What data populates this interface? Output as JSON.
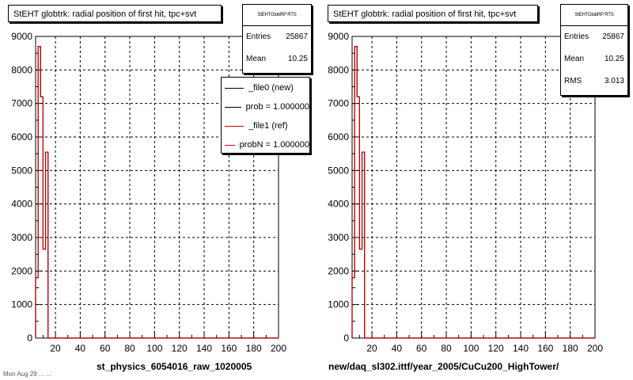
{
  "colors": {
    "new": "#000000",
    "ref": "#cc0000",
    "grid": "#000000"
  },
  "panels": [
    {
      "title": "StEHT globtrk: radial position of first hit, tpc+svt",
      "stats": {
        "header": "StEHTGlobRP RTS",
        "rows": [
          {
            "label": "Entries",
            "value": "25867"
          },
          {
            "label": "Mean",
            "value": "10.25"
          }
        ]
      },
      "legend": [
        {
          "label": "_file0 (new)",
          "color": "#000000"
        },
        {
          "label": "prob = 1.000000",
          "color": "#000000"
        },
        {
          "label": "_file1 (ref)",
          "color": "#cc0000"
        },
        {
          "label": "probN = 1.000000",
          "color": "#cc0000"
        }
      ],
      "xtitle": "st_physics_6054016_raw_1020005"
    },
    {
      "title": "StEHT globtrk: radial position of first hit, tpc+svt",
      "stats": {
        "header": "StEHTGlobRP RTS",
        "rows": [
          {
            "label": "Entries",
            "value": "25867"
          },
          {
            "label": "Mean",
            "value": "10.25"
          },
          {
            "label": "RMS",
            "value": "3.013"
          }
        ]
      },
      "xtitle": "new/daq_sl302.ittf/year_2005/CuCu200_HighTower/"
    }
  ],
  "footer": "Mon Aug 29 ... ...",
  "chart_data": [
    {
      "type": "bar",
      "title": "StEHT globtrk: radial position of first hit, tpc+svt",
      "xlabel": "st_physics_6054016_raw_1020005",
      "ylabel": "",
      "xlim": [
        4,
        200
      ],
      "ylim": [
        0,
        9000
      ],
      "xticks": [
        20,
        40,
        60,
        80,
        100,
        120,
        140,
        160,
        180,
        200
      ],
      "yticks": [
        0,
        1000,
        2000,
        3000,
        4000,
        5000,
        6000,
        7000,
        8000,
        9000
      ],
      "grid": true,
      "legend_position": "top-right",
      "bin_edges": [
        4,
        6,
        8,
        10,
        12,
        14,
        16,
        18,
        200
      ],
      "series": [
        {
          "name": "_file0 (new)",
          "values": [
            1800,
            8700,
            7200,
            2650,
            5550,
            0,
            0,
            0
          ]
        },
        {
          "name": "_file1 (ref)",
          "values": [
            1800,
            8700,
            7200,
            2650,
            5550,
            0,
            0,
            0
          ]
        }
      ]
    },
    {
      "type": "bar",
      "title": "StEHT globtrk: radial position of first hit, tpc+svt",
      "xlabel": "new/daq_sl302.ittf/year_2005/CuCu200_HighTower/",
      "ylabel": "",
      "xlim": [
        4,
        200
      ],
      "ylim": [
        0,
        9000
      ],
      "xticks": [
        20,
        40,
        60,
        80,
        100,
        120,
        140,
        160,
        180,
        200
      ],
      "yticks": [
        0,
        1000,
        2000,
        3000,
        4000,
        5000,
        6000,
        7000,
        8000,
        9000
      ],
      "grid": true,
      "bin_edges": [
        4,
        6,
        8,
        10,
        12,
        14,
        16,
        18,
        200
      ],
      "series": [
        {
          "values": [
            1800,
            8700,
            7200,
            2650,
            5550,
            0,
            0,
            0
          ]
        }
      ]
    }
  ]
}
